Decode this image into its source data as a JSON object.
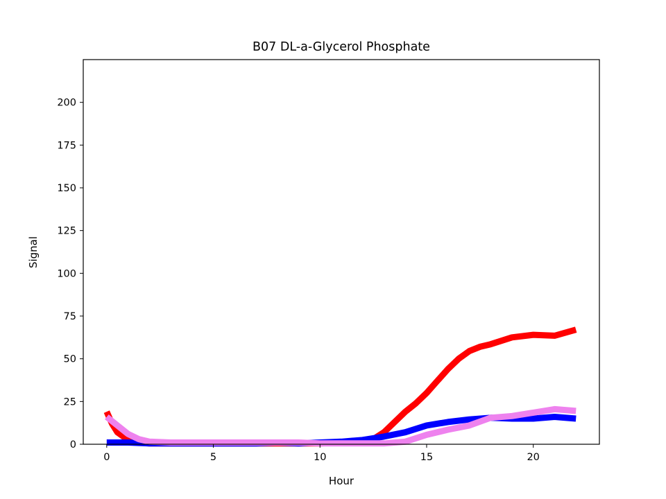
{
  "chart_data": {
    "type": "line",
    "title": "B07 DL-a-Glycerol Phosphate",
    "xlabel": "Hour",
    "ylabel": "Signal",
    "xlim": [
      -1.1,
      23.1
    ],
    "ylim": [
      0,
      225
    ],
    "xticks": [
      0,
      5,
      10,
      15,
      20
    ],
    "yticks": [
      0,
      25,
      50,
      75,
      100,
      125,
      150,
      175,
      200
    ],
    "grid": false,
    "legend": "none",
    "series": [
      {
        "color": "#ff0000",
        "x": [
          0,
          0.25,
          0.5,
          1,
          1.5,
          2,
          3,
          4,
          5,
          6,
          7,
          8,
          9,
          10,
          11,
          12,
          12.5,
          13,
          13.5,
          14,
          14.5,
          15,
          15.5,
          16,
          16.5,
          17,
          17.5,
          18,
          19,
          20,
          21,
          22
        ],
        "y": [
          19,
          12,
          7,
          2.5,
          1,
          0.5,
          0.5,
          0.5,
          0.5,
          0.5,
          0.5,
          0.5,
          0.5,
          0.5,
          1,
          2,
          3,
          7,
          13,
          19,
          24,
          30,
          37,
          44,
          50,
          54.5,
          57,
          58.5,
          62.5,
          64,
          63.5,
          67
        ]
      },
      {
        "color": "#0000ff",
        "x": [
          0,
          1,
          2,
          3,
          4,
          5,
          6,
          7,
          8,
          9,
          10,
          11,
          12,
          13,
          14,
          15,
          16,
          17,
          18,
          19,
          20,
          21,
          22
        ],
        "y": [
          1,
          1,
          0.5,
          0.5,
          0.5,
          0.5,
          0.5,
          0.5,
          1,
          0.5,
          1,
          1.5,
          2.5,
          4.5,
          7,
          11,
          13,
          14.5,
          15.5,
          15,
          15,
          16,
          15
        ]
      },
      {
        "color": "#ee82ee",
        "x": [
          0,
          0.5,
          1,
          1.5,
          2,
          3,
          4,
          5,
          6,
          7,
          8,
          9,
          10,
          11,
          12,
          13,
          14,
          15,
          16,
          17,
          18,
          19,
          20,
          21,
          22
        ],
        "y": [
          16,
          11,
          6,
          3,
          1.5,
          1,
          1,
          1,
          1,
          1,
          1,
          1,
          0.5,
          0.5,
          0.5,
          0.5,
          1.5,
          5.5,
          8.5,
          11,
          15.5,
          16.5,
          18.5,
          20.5,
          19.5
        ]
      }
    ]
  }
}
